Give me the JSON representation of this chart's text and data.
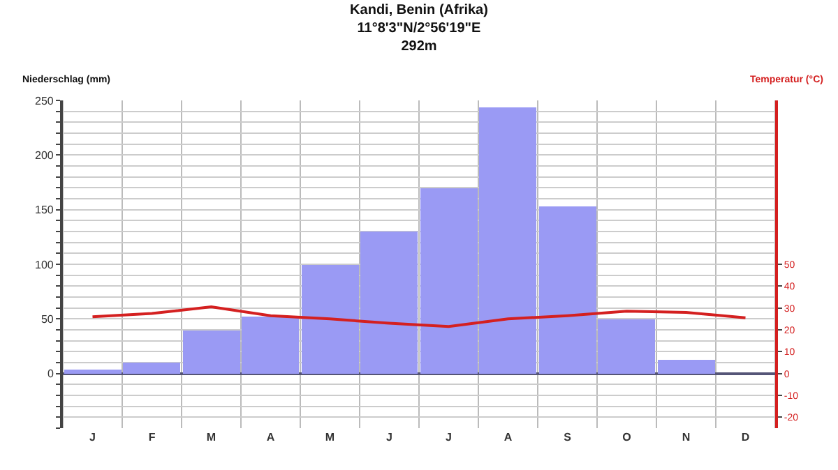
{
  "chart_data": {
    "type": "bar",
    "title": "Kandi, Benin (Afrika)",
    "subtitle": "11°8'3\"N/2°56'19\"E\n292m",
    "ylabel": "Niederschlag (mm)",
    "y2label": "Temperatur (°C)",
    "categories": [
      "J",
      "F",
      "M",
      "A",
      "M",
      "J",
      "J",
      "A",
      "S",
      "O",
      "N",
      "D"
    ],
    "series": [
      {
        "name": null,
        "color": "#9a9af4",
        "values": [
          3,
          10,
          40,
          52,
          100,
          130,
          170,
          243,
          153,
          50,
          12,
          0
        ]
      },
      {
        "name": null,
        "type": "line",
        "axis": "y2",
        "color": "#d42020",
        "values": [
          26,
          27.5,
          30.5,
          26.5,
          25,
          23,
          21.5,
          25,
          26.5,
          28.5,
          28,
          25.5
        ]
      }
    ],
    "ylim": [
      -50,
      250
    ],
    "yticks": [
      {
        "value": -50,
        "label": null
      },
      {
        "value": -40,
        "label": null
      },
      {
        "value": -30,
        "label": null
      },
      {
        "value": -20,
        "label": null
      },
      {
        "value": -10,
        "label": null
      },
      0,
      {
        "value": 10,
        "label": null
      },
      {
        "value": 20,
        "label": null
      },
      {
        "value": 30,
        "label": null
      },
      {
        "value": 40,
        "label": null
      },
      50,
      {
        "value": 60,
        "label": null
      },
      {
        "value": 70,
        "label": null
      },
      {
        "value": 80,
        "label": null
      },
      {
        "value": 90,
        "label": null
      },
      100,
      {
        "value": 110,
        "label": null
      },
      {
        "value": 120,
        "label": null
      },
      {
        "value": 130,
        "label": null
      },
      {
        "value": 140,
        "label": null
      },
      150,
      {
        "value": 160,
        "label": null
      },
      {
        "value": 170,
        "label": null
      },
      {
        "value": 180,
        "label": null
      },
      {
        "value": 190,
        "label": null
      },
      200,
      {
        "value": 210,
        "label": null
      },
      {
        "value": 220,
        "label": null
      },
      {
        "value": 230,
        "label": null
      },
      {
        "value": 240,
        "label": null
      },
      250
    ],
    "y2lim": [
      -25,
      125
    ],
    "y2ticks": [
      -20,
      -10,
      0,
      10,
      20,
      30,
      40,
      50
    ],
    "grid": true,
    "legend": false,
    "marker": "none",
    "line_style": "solid"
  }
}
